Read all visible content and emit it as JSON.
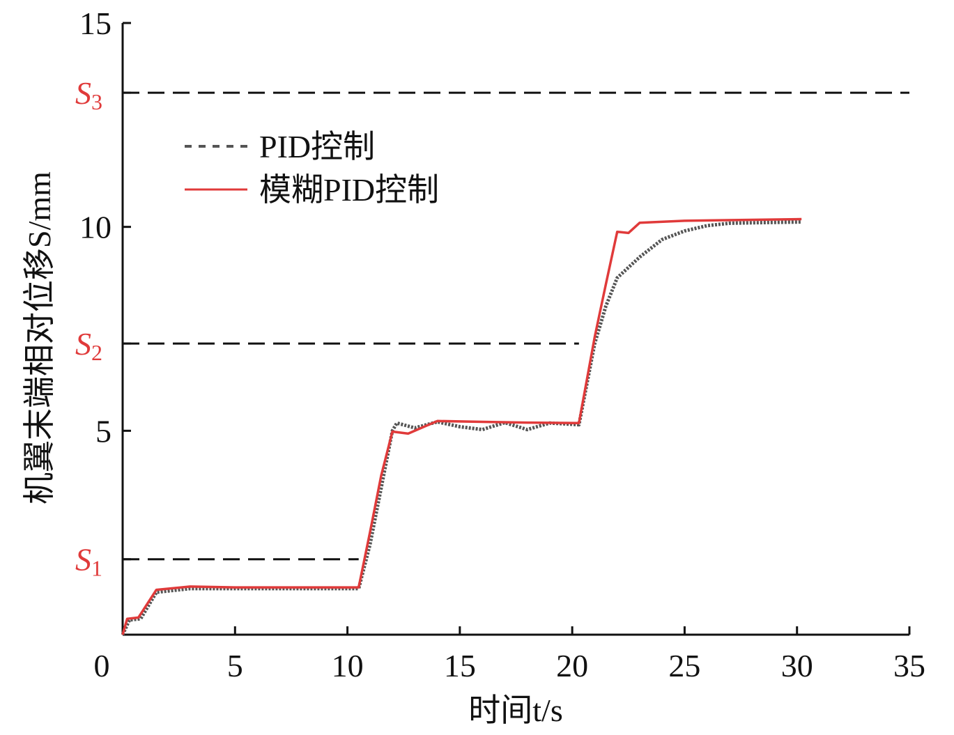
{
  "chart_data": {
    "type": "line",
    "x_label": "时间t/s",
    "y_label": "机翼末端相对位移S/mm",
    "xlim": [
      0,
      35
    ],
    "xticks": [
      0,
      5,
      10,
      15,
      20,
      25,
      30,
      35
    ],
    "ylim": [
      0,
      15
    ],
    "yticks": [
      5,
      10,
      15
    ],
    "reference_lines": [
      {
        "label": "S",
        "subscript": "1",
        "value": 1.85,
        "xend": 10.5
      },
      {
        "label": "S",
        "subscript": "2",
        "value": 7.14,
        "xend": 20.3
      },
      {
        "label": "S",
        "subscript": "3",
        "value": 13.29,
        "xend": 35
      }
    ],
    "series": [
      {
        "name": "PID控制",
        "color": "#555555",
        "style": "dotted",
        "x": [
          0,
          0.3,
          0.8,
          1.5,
          3,
          5,
          10.5,
          11,
          11.5,
          12,
          12.2,
          13,
          14,
          15,
          16,
          17,
          18,
          19,
          20.3,
          21,
          21.5,
          22,
          23,
          24,
          25,
          26,
          27,
          28,
          30.2
        ],
        "values": [
          0,
          0.36,
          0.39,
          1.04,
          1.13,
          1.13,
          1.13,
          2.2,
          3.6,
          5.0,
          5.19,
          5.07,
          5.22,
          5.1,
          5.03,
          5.2,
          5.03,
          5.19,
          5.15,
          7.14,
          8.06,
          8.75,
          9.26,
          9.69,
          9.9,
          10.03,
          10.09,
          10.1,
          10.12
        ]
      },
      {
        "name": "模糊PID控制",
        "color": "#e03a3a",
        "style": "solid",
        "x": [
          0,
          0.2,
          0.7,
          1.5,
          3,
          5,
          10.5,
          11,
          11.5,
          12,
          12.7,
          14,
          16,
          18,
          20.3,
          21,
          21.5,
          22,
          22.5,
          23,
          25,
          30.2
        ],
        "values": [
          0,
          0.39,
          0.42,
          1.1,
          1.18,
          1.16,
          1.16,
          2.5,
          3.9,
          4.98,
          4.93,
          5.24,
          5.22,
          5.2,
          5.19,
          7.3,
          8.6,
          9.88,
          9.85,
          10.1,
          10.15,
          10.19
        ]
      }
    ]
  }
}
